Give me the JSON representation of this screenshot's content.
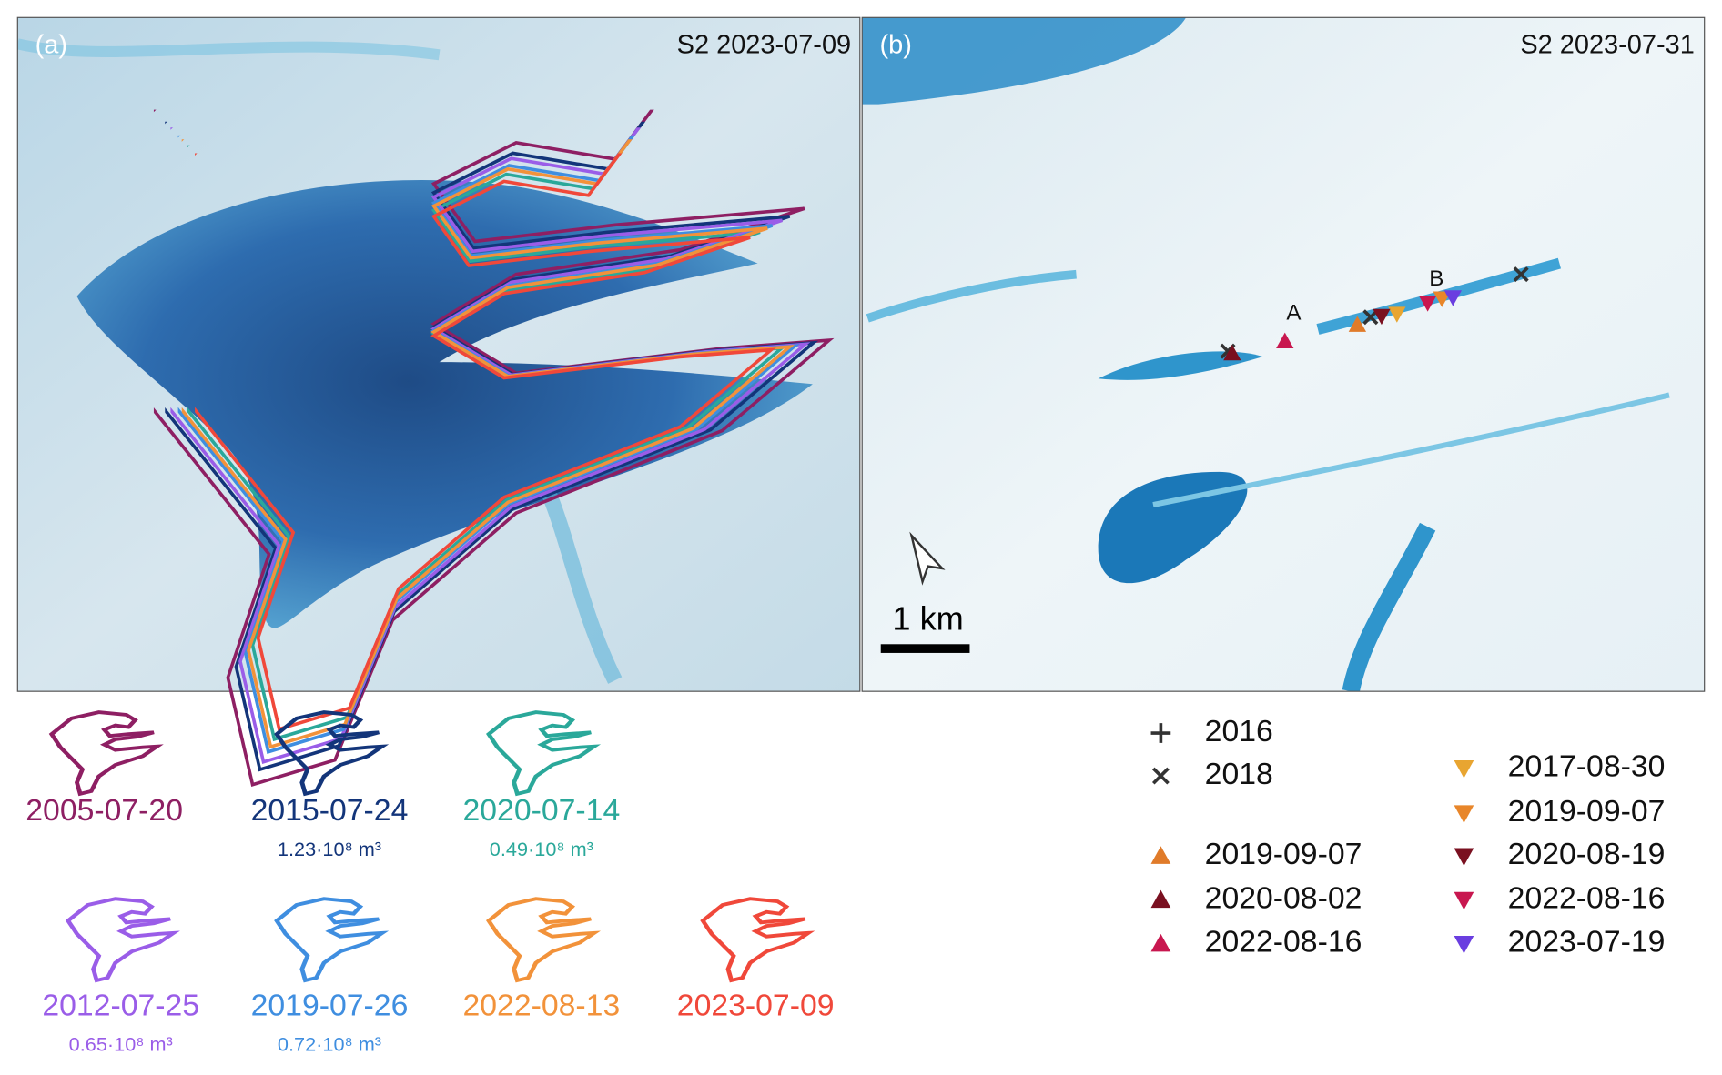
{
  "panels": [
    {
      "label": "(a)",
      "caption": "S2 2023-07-09"
    },
    {
      "label": "(b)",
      "caption": "S2 2023-07-31",
      "point_labels": [
        "A",
        "B"
      ],
      "scale_bar": "1 km"
    }
  ],
  "outline_legend": [
    {
      "date": "2005-07-20",
      "color": "#8e1f63"
    },
    {
      "date": "2015-07-24",
      "color": "#13357a",
      "volume": "1.23·10⁸ m³"
    },
    {
      "date": "2020-07-14",
      "color": "#2aa89a",
      "volume": "0.49·10⁸ m³"
    },
    {
      "date": "2012-07-25",
      "color": "#9a5de8",
      "volume": "0.65·10⁸ m³"
    },
    {
      "date": "2019-07-26",
      "color": "#3f8ee0",
      "volume": "0.72·10⁸ m³"
    },
    {
      "date": "2022-08-13",
      "color": "#f2923a"
    },
    {
      "date": "2023-07-09",
      "color": "#f0483a"
    }
  ],
  "marker_legend": [
    {
      "label": "2016",
      "symbol": "plus",
      "color": "#333333"
    },
    {
      "label": "2018",
      "symbol": "cross",
      "color": "#333333"
    },
    {
      "label": "2019-09-07",
      "symbol": "up",
      "color": "#e07b2a"
    },
    {
      "label": "2020-08-02",
      "symbol": "up",
      "color": "#7a1020"
    },
    {
      "label": "2022-08-16",
      "symbol": "up",
      "color": "#c8174f"
    },
    {
      "label": "2017-08-30",
      "symbol": "down",
      "color": "#e8a531"
    },
    {
      "label": "2019-09-07",
      "symbol": "down",
      "color": "#e8862a"
    },
    {
      "label": "2020-08-19",
      "symbol": "down",
      "color": "#7a1020"
    },
    {
      "label": "2022-08-16",
      "symbol": "down",
      "color": "#c8174f"
    },
    {
      "label": "2023-07-19",
      "symbol": "down",
      "color": "#6a3ee0"
    }
  ]
}
